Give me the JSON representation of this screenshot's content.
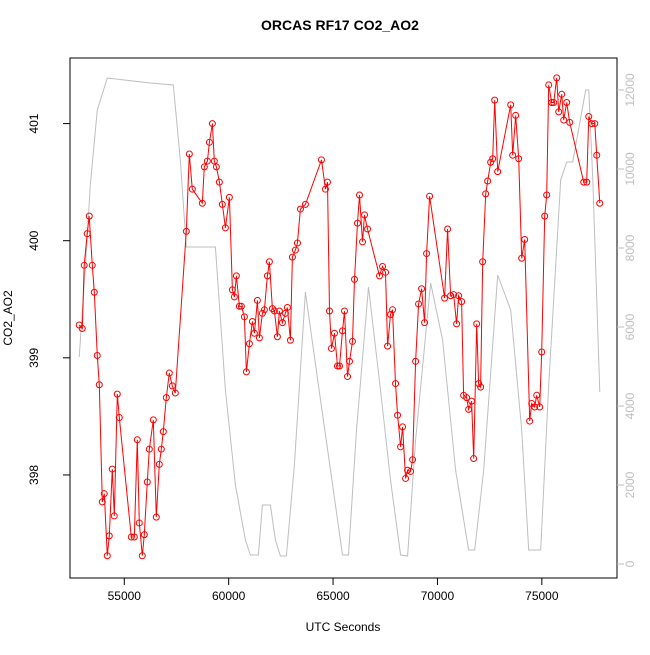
{
  "chart_data": {
    "type": "line",
    "title": "ORCAS RF17 CO2_AO2",
    "x_label": "UTC Seconds",
    "y_label": "CO2_AO2",
    "xlim": [
      52400,
      78600
    ],
    "xticks": [
      55000,
      60000,
      65000,
      70000,
      75000
    ],
    "ylim": [
      397.12,
      401.56
    ],
    "yticks": [
      398,
      399,
      400,
      401
    ],
    "y2lim": [
      -354,
      12810
    ],
    "y2ticks": [
      0,
      2000,
      4000,
      6000,
      8000,
      10000,
      12000
    ],
    "y2_color": "#bebebe",
    "series": [
      {
        "color": "#bebebe",
        "axis": "y2",
        "markers": false,
        "x": [
          52843,
          53130,
          53370,
          53706,
          54185,
          55000,
          56247,
          57349,
          57685,
          57972,
          59362,
          59506,
          59842,
          60321,
          60801,
          61040,
          61424,
          61616,
          61999,
          62239,
          62479,
          62766,
          63150,
          63677,
          64300,
          64875,
          65452,
          65739,
          66123,
          66698,
          67274,
          67753,
          68233,
          68569,
          68952,
          69671,
          70247,
          70871,
          71494,
          71782,
          72213,
          72884,
          73508,
          74035,
          74370,
          74945,
          75329,
          75904,
          76193,
          76480,
          77103,
          77247,
          77439,
          77774
        ],
        "values": [
          5241,
          7443,
          9595,
          11494,
          12304,
          12253,
          12177,
          12127,
          10228,
          8025,
          8025,
          6937,
          4405,
          2000,
          608,
          228,
          228,
          1494,
          1494,
          608,
          203,
          203,
          2506,
          6886,
          4532,
          2380,
          228,
          228,
          3392,
          7013,
          4405,
          2127,
          228,
          203,
          3139,
          7114,
          5671,
          2380,
          354,
          354,
          2380,
          7316,
          6430,
          3392,
          354,
          354,
          4532,
          9722,
          10177,
          10177,
          12000,
          12000,
          9722,
          4354
        ]
      },
      {
        "color": "#ff0000",
        "axis": "y",
        "markers": true,
        "x": [
          52843,
          52987,
          53082,
          53226,
          53322,
          53466,
          53562,
          53706,
          53802,
          53946,
          54041,
          54185,
          54281,
          54425,
          54521,
          54664,
          54760,
          55336,
          55480,
          55623,
          55719,
          55863,
          55959,
          56103,
          56199,
          56391,
          56534,
          56678,
          56774,
          56870,
          57014,
          57157,
          57301,
          57445,
          57972,
          58116,
          58260,
          58739,
          58835,
          58979,
          59075,
          59219,
          59314,
          59410,
          59554,
          59698,
          59842,
          60034,
          60178,
          60273,
          60369,
          60513,
          60609,
          60753,
          60849,
          60992,
          61136,
          61232,
          61376,
          61472,
          61616,
          61712,
          61856,
          61951,
          62095,
          62191,
          62335,
          62431,
          62575,
          62719,
          62814,
          62958,
          63054,
          63198,
          63294,
          63438,
          63677,
          64444,
          64636,
          64732,
          64828,
          64924,
          65068,
          65212,
          65308,
          65452,
          65548,
          65692,
          65788,
          65931,
          66027,
          66171,
          66267,
          66411,
          66507,
          66651,
          67226,
          67370,
          67514,
          67610,
          67753,
          67849,
          67993,
          68089,
          68233,
          68329,
          68473,
          68569,
          68713,
          68809,
          68952,
          69096,
          69240,
          69384,
          69480,
          69624,
          70343,
          70487,
          70631,
          70774,
          70918,
          71014,
          71158,
          71254,
          71398,
          71494,
          71638,
          71734,
          71878,
          71973,
          72069,
          72165,
          72309,
          72405,
          72549,
          72645,
          72740,
          72884,
          73508,
          73603,
          73747,
          73891,
          74035,
          74178,
          74418,
          74514,
          74658,
          74754,
          74898,
          74994,
          75138,
          75233,
          75329,
          75473,
          75569,
          75713,
          75809,
          75953,
          76049,
          76193,
          76336,
          77007,
          77151,
          77247,
          77391,
          77535,
          77630,
          77774
        ],
        "values": [
          399.28,
          399.25,
          399.79,
          400.06,
          400.21,
          399.79,
          399.56,
          399.02,
          398.77,
          397.77,
          397.84,
          397.31,
          397.48,
          398.05,
          397.65,
          398.69,
          398.49,
          397.47,
          397.47,
          398.3,
          397.59,
          397.31,
          397.49,
          397.94,
          398.22,
          398.47,
          397.64,
          398.09,
          398.22,
          398.37,
          398.66,
          398.87,
          398.76,
          398.7,
          400.08,
          400.74,
          400.44,
          400.32,
          400.63,
          400.68,
          400.84,
          401.0,
          400.68,
          400.63,
          400.5,
          400.31,
          400.11,
          400.37,
          399.58,
          399.52,
          399.7,
          399.44,
          399.44,
          399.35,
          398.88,
          399.12,
          399.31,
          399.21,
          399.49,
          399.17,
          399.38,
          399.41,
          399.7,
          399.82,
          399.42,
          399.4,
          399.18,
          399.4,
          399.3,
          399.38,
          399.43,
          399.15,
          399.86,
          399.92,
          399.98,
          400.27,
          400.31,
          400.69,
          400.44,
          400.5,
          399.4,
          399.08,
          399.21,
          398.93,
          398.93,
          399.23,
          399.4,
          398.84,
          398.97,
          399.14,
          399.67,
          400.15,
          400.39,
          399.99,
          400.22,
          400.1,
          399.7,
          399.78,
          399.73,
          399.1,
          399.37,
          399.41,
          398.78,
          398.51,
          398.24,
          398.41,
          397.97,
          398.04,
          398.03,
          398.13,
          398.97,
          399.46,
          399.59,
          399.3,
          399.89,
          400.38,
          399.51,
          400.1,
          399.53,
          399.54,
          399.29,
          399.53,
          399.48,
          398.68,
          398.66,
          398.56,
          398.63,
          398.14,
          399.29,
          398.78,
          398.75,
          399.82,
          400.4,
          400.51,
          400.67,
          400.7,
          401.2,
          400.59,
          401.16,
          400.73,
          401.07,
          400.7,
          399.85,
          400.01,
          398.46,
          398.61,
          398.58,
          398.68,
          398.58,
          399.05,
          400.21,
          400.39,
          401.33,
          401.18,
          401.18,
          401.39,
          401.1,
          401.25,
          401.03,
          401.18,
          401.01,
          400.5,
          400.5,
          401.06,
          401.0,
          401.0,
          400.73,
          400.32
        ]
      }
    ]
  }
}
